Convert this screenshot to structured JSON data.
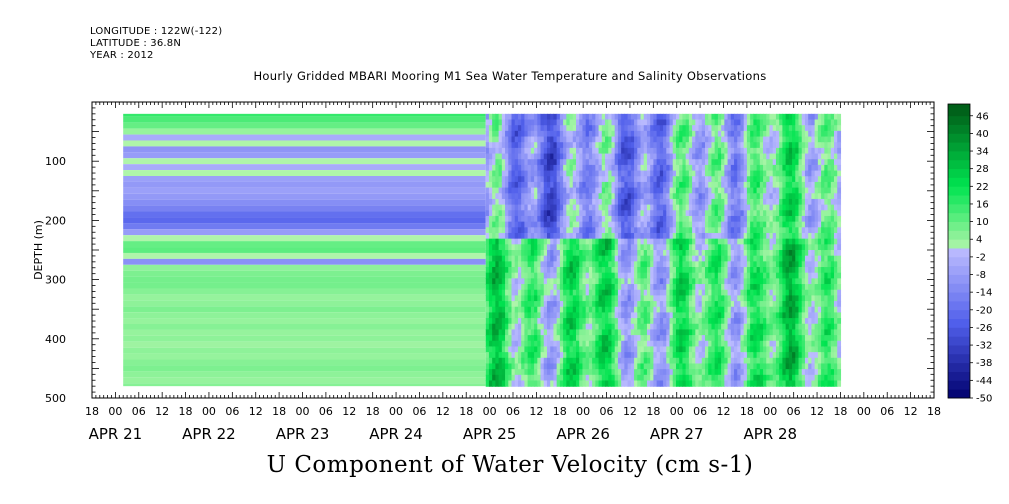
{
  "header": {
    "longitude": "LONGITUDE : 122W(-122)",
    "latitude": "LATITUDE : 36.8N",
    "year": "YEAR : 2012"
  },
  "chart_data": {
    "type": "heatmap",
    "title": "Hourly Gridded MBARI Mooring M1 Sea Water Temperature and Salinity Observations",
    "bottom_title": "U Component of Water Velocity (cm s-1)",
    "ylabel": "DEPTH (m)",
    "ylim": [
      500,
      0
    ],
    "y_ticks": [
      100,
      200,
      300,
      400,
      500
    ],
    "x_hour_ticks": [
      "18",
      "00",
      "06",
      "12",
      "18",
      "00",
      "06",
      "12",
      "18",
      "00",
      "06",
      "12",
      "18",
      "00",
      "06",
      "12",
      "18",
      "00",
      "06",
      "12",
      "18",
      "00",
      "06",
      "12",
      "18",
      "00",
      "06",
      "12",
      "18",
      "00",
      "06",
      "12",
      "18",
      "00",
      "06",
      "12",
      "18"
    ],
    "x_day_labels": [
      "APR 21",
      "APR 22",
      "APR 23",
      "APR 24",
      "APR 25",
      "APR 26",
      "APR 27",
      "APR 28"
    ],
    "colorbar": {
      "labels": [
        "46",
        "40",
        "34",
        "28",
        "22",
        "16",
        "10",
        "4",
        "-2",
        "-8",
        "-14",
        "-20",
        "-26",
        "-32",
        "-38",
        "-44",
        "-50"
      ],
      "range": [
        -50,
        50
      ],
      "step": 3
    },
    "grid": false,
    "legend": "colorbar-right",
    "data_start": "APR 21 02:00",
    "gridded_switch": "APR 24 23:00",
    "data_end": "APR 28 18:00",
    "depth_range": [
      20,
      480
    ],
    "profile_before_apr25": [
      {
        "depth": 20,
        "u": 16
      },
      {
        "depth": 30,
        "u": 13
      },
      {
        "depth": 40,
        "u": 10
      },
      {
        "depth": 50,
        "u": 4
      },
      {
        "depth": 60,
        "u": -4
      },
      {
        "depth": 70,
        "u": 1
      },
      {
        "depth": 80,
        "u": -10
      },
      {
        "depth": 90,
        "u": -8
      },
      {
        "depth": 100,
        "u": 1
      },
      {
        "depth": 110,
        "u": -4
      },
      {
        "depth": 120,
        "u": 1
      },
      {
        "depth": 130,
        "u": -7
      },
      {
        "depth": 140,
        "u": -9
      },
      {
        "depth": 150,
        "u": -7
      },
      {
        "depth": 160,
        "u": -9
      },
      {
        "depth": 170,
        "u": -12
      },
      {
        "depth": 180,
        "u": -15
      },
      {
        "depth": 190,
        "u": -20
      },
      {
        "depth": 200,
        "u": -22
      },
      {
        "depth": 210,
        "u": -17
      },
      {
        "depth": 220,
        "u": -8
      },
      {
        "depth": 230,
        "u": 1
      },
      {
        "depth": 240,
        "u": 10
      },
      {
        "depth": 250,
        "u": 11
      },
      {
        "depth": 260,
        "u": 1
      },
      {
        "depth": 270,
        "u": -11
      },
      {
        "depth": 280,
        "u": 5
      },
      {
        "depth": 290,
        "u": 7
      },
      {
        "depth": 300,
        "u": 8
      },
      {
        "depth": 310,
        "u": 8
      },
      {
        "depth": 320,
        "u": 6
      },
      {
        "depth": 330,
        "u": 4
      },
      {
        "depth": 340,
        "u": 5
      },
      {
        "depth": 350,
        "u": 7
      },
      {
        "depth": 360,
        "u": 5
      },
      {
        "depth": 370,
        "u": 4
      },
      {
        "depth": 380,
        "u": 6
      },
      {
        "depth": 390,
        "u": 4
      },
      {
        "depth": 400,
        "u": 5
      },
      {
        "depth": 410,
        "u": 3
      },
      {
        "depth": 420,
        "u": 5
      },
      {
        "depth": 430,
        "u": 4
      },
      {
        "depth": 440,
        "u": 6
      },
      {
        "depth": 450,
        "u": 7
      },
      {
        "depth": 460,
        "u": 5
      },
      {
        "depth": 470,
        "u": 4
      },
      {
        "depth": 480,
        "u": 6
      }
    ],
    "field_after_apr25_approx": [
      {
        "day": "APR 25",
        "upper_0_230m": -14,
        "lower_230_480m": 10
      },
      {
        "day": "APR 26",
        "upper_0_230m": -12,
        "lower_230_480m": 12
      },
      {
        "day": "APR 27",
        "upper_0_230m": -9,
        "lower_230_480m": 4
      },
      {
        "day": "APR 28",
        "upper_0_230m": 6,
        "lower_230_480m": 13
      }
    ]
  }
}
